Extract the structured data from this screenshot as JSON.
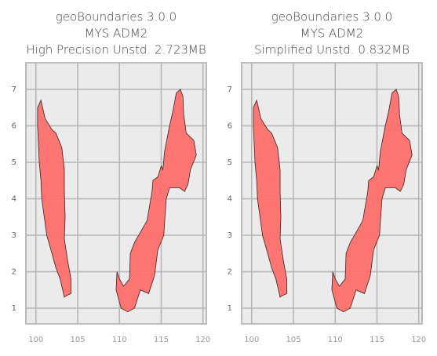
{
  "chart_data": [
    {
      "type": "map",
      "title": [
        "geoBoundaries 3.0.0",
        "MYS ADM2",
        "High Precision Unstd. 2.723MB"
      ],
      "xlim": [
        98.8,
        120.4
      ],
      "ylim": [
        0.57,
        7.73
      ],
      "xticks": [
        100,
        105,
        110,
        115,
        120
      ],
      "yticks": [
        1,
        2,
        3,
        4,
        5,
        6,
        7
      ],
      "color": "#ff6f6a",
      "grid": true
    },
    {
      "type": "map",
      "title": [
        "geoBoundaries 3.0.0",
        "MYS ADM2",
        "Simplified Unstd. 0.832MB"
      ],
      "xlim": [
        98.8,
        120.4
      ],
      "ylim": [
        0.57,
        7.73
      ],
      "xticks": [
        100,
        105,
        110,
        115,
        120
      ],
      "yticks": [
        1,
        2,
        3,
        4,
        5,
        6,
        7
      ],
      "color": "#ff6f6a",
      "grid": true
    }
  ]
}
